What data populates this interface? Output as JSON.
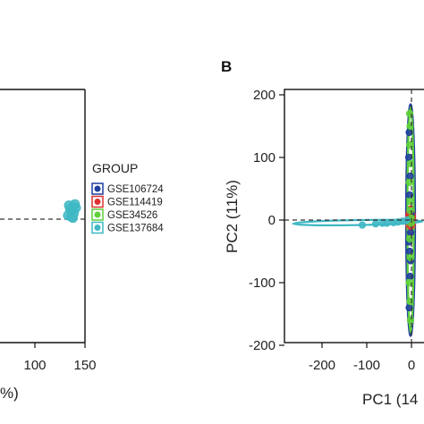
{
  "chart_data": [
    {
      "type": "scatter",
      "panel_label": "",
      "xlabel": "%)",
      "ylabel": "",
      "x_ticks": [
        "100",
        "150"
      ],
      "x_tick_values": [
        100,
        150
      ],
      "xlim": [
        -60,
        150
      ],
      "ylim": [
        -100,
        100
      ],
      "reference_lines": {
        "horizontal": 0
      },
      "grid": false,
      "series": [
        {
          "group": "GSE137684",
          "color": "#3fb8c4",
          "points": [
            [
              135,
              8
            ],
            [
              138,
              10
            ],
            [
              140,
              12
            ],
            [
              137,
              6
            ],
            [
              133,
              3
            ],
            [
              139,
              5
            ],
            [
              136,
              2
            ],
            [
              141,
              9
            ],
            [
              134,
              11
            ],
            [
              138,
              1
            ]
          ]
        }
      ],
      "legend": {
        "title": "GROUP",
        "placement": "right",
        "entries": [
          {
            "label": "GSE106724",
            "color": "#1f3fa0"
          },
          {
            "label": "GSE114419",
            "color": "#e03030"
          },
          {
            "label": "GSE34526",
            "color": "#5ecf3a"
          },
          {
            "label": "GSE137684",
            "color": "#3fb8c4"
          }
        ]
      }
    },
    {
      "type": "scatter",
      "panel_label": "B",
      "xlabel": "PC1 (14",
      "ylabel": "PC2 (11%)",
      "x_ticks": [
        "-200",
        "-100",
        "0"
      ],
      "x_tick_values": [
        -200,
        -100,
        0
      ],
      "y_ticks": [
        "200",
        "100",
        "0",
        "-100",
        "-200"
      ],
      "y_tick_values": [
        200,
        100,
        0,
        -100,
        -200
      ],
      "xlim": [
        -265,
        15
      ],
      "ylim": [
        -200,
        200
      ],
      "reference_lines": {
        "horizontal": 0,
        "vertical": 0
      },
      "grid": false,
      "series": [
        {
          "group": "GSE106724",
          "color": "#1f3fa0",
          "points": [
            [
              -5,
              140
            ],
            [
              -3,
              70
            ],
            [
              -4,
              40
            ],
            [
              -2,
              -20
            ],
            [
              -6,
              -35
            ],
            [
              -4,
              -50
            ],
            [
              -2,
              -65
            ],
            [
              -3,
              -90
            ],
            [
              -5,
              -140
            ],
            [
              -1,
              10
            ],
            [
              -6,
              100
            ]
          ],
          "ellipse": {
            "cx": -2,
            "cy": 0,
            "rx": 10,
            "ry": 185
          }
        },
        {
          "group": "GSE114419",
          "color": "#e03030",
          "points": [
            [
              -4,
              5
            ],
            [
              -1,
              -5
            ],
            [
              1,
              2
            ],
            [
              -2,
              -10
            ],
            [
              -5,
              10
            ]
          ],
          "ellipse": {
            "cx": -2,
            "cy": 0,
            "rx": 10,
            "ry": 22
          }
        },
        {
          "group": "GSE34526",
          "color": "#5ecf3a",
          "points": [
            [
              -3,
              150
            ],
            [
              -4,
              120
            ],
            [
              -2,
              90
            ],
            [
              -5,
              60
            ],
            [
              -3,
              30
            ],
            [
              -1,
              3
            ],
            [
              -4,
              -30
            ],
            [
              -2,
              -60
            ],
            [
              -5,
              -100
            ],
            [
              -3,
              -130
            ],
            [
              -2,
              -160
            ],
            [
              -4,
              170
            ],
            [
              -1,
              -5
            ],
            [
              -3,
              15
            ]
          ],
          "ellipse": {
            "cx": -2,
            "cy": 0,
            "rx": 7,
            "ry": 180
          }
        },
        {
          "group": "GSE137684",
          "color": "#3fb8c4",
          "points": [
            [
              -30,
              -3
            ],
            [
              -55,
              -5
            ],
            [
              -80,
              -6
            ],
            [
              -110,
              -8
            ],
            [
              -20,
              -2
            ],
            [
              -10,
              0
            ],
            [
              -40,
              -4
            ],
            [
              -65,
              -5
            ]
          ],
          "ellipse": {
            "cx": -120,
            "cy": -4,
            "rx": 145,
            "ry": 4,
            "rotate": -1
          }
        }
      ]
    }
  ]
}
